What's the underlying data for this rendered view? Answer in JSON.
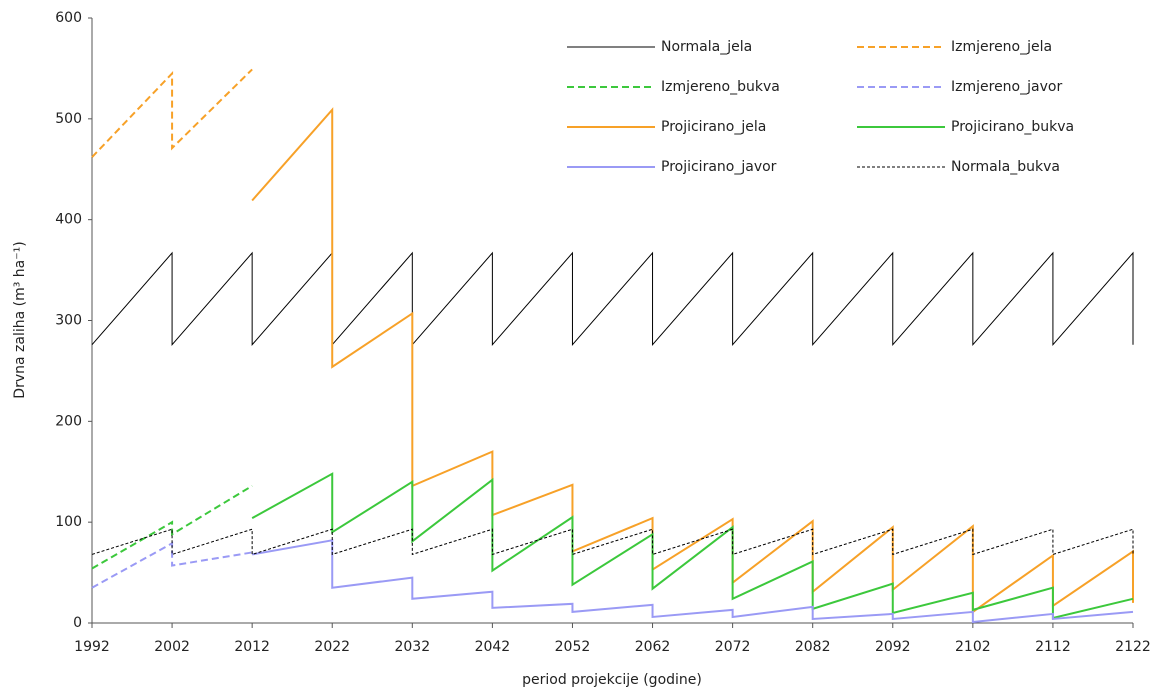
{
  "chart_data": {
    "type": "line",
    "y_label": "Drvna zaliha (m³ ha⁻¹)",
    "x_label": "period projekcije (godine)",
    "x": [
      1992,
      2002,
      2002,
      2012,
      2012,
      2022,
      2022,
      2032,
      2032,
      2042,
      2042,
      2052,
      2052,
      2062,
      2062,
      2072,
      2072,
      2082,
      2082,
      2092,
      2092,
      2102,
      2102,
      2112,
      2112,
      2122,
      2122
    ],
    "xlim": [
      1992,
      2122
    ],
    "xticks": [
      1992,
      2002,
      2012,
      2022,
      2032,
      2042,
      2052,
      2062,
      2072,
      2082,
      2092,
      2102,
      2112,
      2122
    ],
    "ylim": [
      0,
      600
    ],
    "yticks": [
      0,
      100,
      200,
      300,
      400,
      500,
      600
    ],
    "grid": false,
    "legend": "upper right",
    "series": [
      {
        "name": "Normala_jela",
        "color": "#000000",
        "style": "solid",
        "width": 1,
        "values": [
          276,
          367,
          276,
          367,
          276,
          367,
          276,
          367,
          276,
          367,
          276,
          367,
          276,
          367,
          276,
          367,
          276,
          367,
          276,
          367,
          276,
          367,
          276,
          367,
          276,
          367,
          276
        ]
      },
      {
        "name": "Izmjereno_jela",
        "color": "#f7a128",
        "style": "dashed",
        "width": 2,
        "values": [
          462,
          545,
          471,
          549,
          null,
          null,
          null,
          null,
          null,
          null,
          null,
          null,
          null,
          null,
          null,
          null,
          null,
          null,
          null,
          null,
          null,
          null,
          null,
          null,
          null,
          null,
          null
        ]
      },
      {
        "name": "Izmjereno_bukva",
        "color": "#3cc83c",
        "style": "dashed",
        "width": 2,
        "values": [
          54,
          100,
          88,
          136,
          null,
          null,
          null,
          null,
          null,
          null,
          null,
          null,
          null,
          null,
          null,
          null,
          null,
          null,
          null,
          null,
          null,
          null,
          null,
          null,
          null,
          null,
          null
        ]
      },
      {
        "name": "Izmjereno_javor",
        "color": "#9a9af5",
        "style": "dashed",
        "width": 2,
        "values": [
          35,
          79,
          57,
          70,
          null,
          null,
          null,
          null,
          null,
          null,
          null,
          null,
          null,
          null,
          null,
          null,
          null,
          null,
          null,
          null,
          null,
          null,
          null,
          null,
          null,
          null,
          null
        ]
      },
      {
        "name": "Projicirano_jela",
        "color": "#f7a128",
        "style": "solid",
        "width": 2,
        "values": [
          null,
          null,
          null,
          null,
          419,
          509,
          254,
          307,
          136,
          170,
          107,
          137,
          71,
          104,
          53,
          103,
          40,
          101,
          31,
          95,
          33,
          96,
          11,
          67,
          17,
          71,
          20
        ]
      },
      {
        "name": "Projicirano_bukva",
        "color": "#3cc83c",
        "style": "solid",
        "width": 2,
        "values": [
          null,
          null,
          null,
          null,
          104,
          148,
          90,
          140,
          81,
          142,
          52,
          105,
          38,
          88,
          34,
          95,
          24,
          61,
          14,
          39,
          10,
          30,
          13,
          35,
          5,
          24,
          null
        ]
      },
      {
        "name": "Projicirano_javor",
        "color": "#9a9af5",
        "style": "solid",
        "width": 2,
        "values": [
          null,
          null,
          null,
          null,
          68,
          82,
          35,
          45,
          24,
          31,
          15,
          19,
          11,
          18,
          6,
          13,
          6,
          16,
          4,
          9,
          4,
          11,
          1,
          9,
          4,
          11,
          null
        ]
      },
      {
        "name": "Normala_bukva",
        "color": "#000000",
        "style": "dotted",
        "width": 1,
        "values": [
          68,
          93,
          68,
          93,
          68,
          93,
          68,
          93,
          68,
          93,
          68,
          93,
          68,
          93,
          68,
          93,
          68,
          93,
          68,
          93,
          68,
          93,
          68,
          93,
          68,
          93,
          68
        ]
      }
    ]
  }
}
